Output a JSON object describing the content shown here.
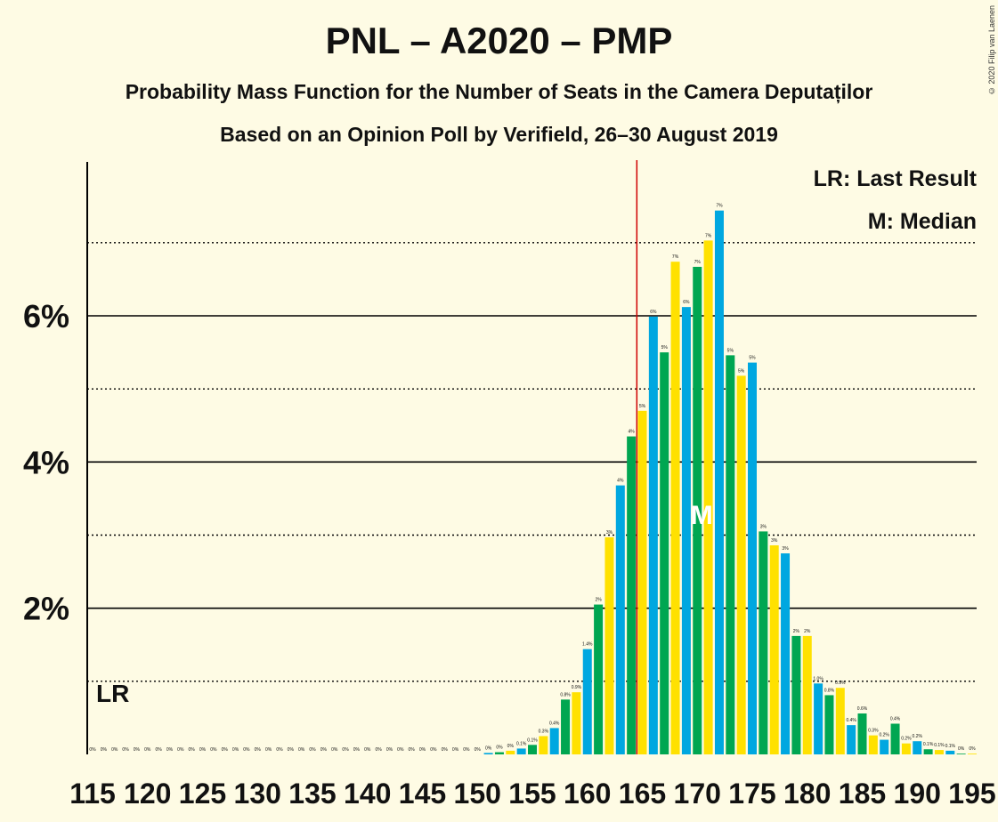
{
  "title": "PNL – A2020 – PMP",
  "subtitle1": "Probability Mass Function for the Number of Seats in the Camera Deputaților",
  "subtitle2": "Based on an Opinion Poll by Verifield, 26–30 August 2019",
  "copyright": "© 2020 Filip van Laenen",
  "legend": {
    "lr": "LR: Last Result",
    "m": "M: Median"
  },
  "colors": {
    "blue": "#00a7e0",
    "green": "#00a651",
    "yellow": "#ffe100",
    "lr_line": "#d00000",
    "background": "#fefbe4"
  },
  "chart_data": {
    "type": "bar",
    "x_start": 115,
    "x_end": 195,
    "x_tick_labels": [
      "115",
      "120",
      "125",
      "130",
      "135",
      "140",
      "145",
      "150",
      "155",
      "160",
      "165",
      "170",
      "175",
      "180",
      "185",
      "190",
      "195"
    ],
    "y_tick_labels": [
      "2%",
      "4%",
      "6%"
    ],
    "ylim": [
      0,
      8.1
    ],
    "y_major_gridlines": [
      2,
      4,
      6
    ],
    "y_minor_gridlines": [
      1,
      3,
      5,
      7
    ],
    "last_result_seat": 165,
    "last_result_label": "LR",
    "median_seat": 170,
    "median_label": "M",
    "values": [
      0,
      0,
      0,
      0,
      0,
      0,
      0,
      0,
      0,
      0,
      0,
      0,
      0,
      0,
      0,
      0,
      0,
      0,
      0,
      0,
      0,
      0,
      0,
      0,
      0,
      0,
      0,
      0,
      0,
      0,
      0,
      0,
      0,
      0,
      0,
      0,
      0.02,
      0.03,
      0.05,
      0.08,
      0.13,
      0.25,
      0.36,
      0.75,
      0.85,
      1.44,
      2.05,
      2.97,
      3.68,
      4.35,
      4.7,
      5.99,
      5.5,
      6.74,
      6.12,
      6.67,
      7.03,
      7.44,
      5.46,
      5.18,
      5.36,
      3.05,
      2.86,
      2.75,
      1.62,
      1.62,
      0.97,
      0.81,
      0.91,
      0.4,
      0.56,
      0.26,
      0.2,
      0.42,
      0.15,
      0.18,
      0.07,
      0.06,
      0.05,
      0.01,
      0.01
    ],
    "value_labels": [
      "0%",
      "0%",
      "0%",
      "0%",
      "0%",
      "0%",
      "0%",
      "0%",
      "0%",
      "0%",
      "0%",
      "0%",
      "0%",
      "0%",
      "0%",
      "0%",
      "0%",
      "0%",
      "0%",
      "0%",
      "0%",
      "0%",
      "0%",
      "0%",
      "0%",
      "0%",
      "0%",
      "0%",
      "0%",
      "0%",
      "0%",
      "0%",
      "0%",
      "0%",
      "0%",
      "0%",
      "0%",
      "0%",
      "0%",
      "0.1%",
      "0.1%",
      "0.3%",
      "0.4%",
      "0.8%",
      "0.9%",
      "1.4%",
      "2%",
      "3%",
      "4%",
      "4%",
      "5%",
      "6%",
      "5%",
      "7%",
      "6%",
      "7%",
      "7%",
      "7%",
      "5%",
      "5%",
      "5%",
      "3%",
      "3%",
      "3%",
      "2%",
      "2%",
      "1.0%",
      "0.8%",
      "0.9%",
      "0.4%",
      "0.6%",
      "0.3%",
      "0.2%",
      "0.4%",
      "0.2%",
      "0.2%",
      "0.1%",
      "0.1%",
      "0.1%",
      "0%",
      "0%"
    ]
  }
}
